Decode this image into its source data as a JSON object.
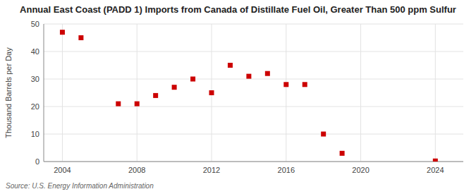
{
  "chart_data": {
    "type": "scatter",
    "title": "Annual East Coast (PADD 1) Imports from Canada of Distillate Fuel Oil, Greater Than 500 ppm Sulfur",
    "y_label": "Thousand Barrels per Day",
    "source": "Source: U.S. Energy Information Administration",
    "x": [
      2004,
      2005,
      2007,
      2008,
      2009,
      2010,
      2011,
      2012,
      2013,
      2014,
      2015,
      2016,
      2017,
      2018,
      2019,
      2024
    ],
    "values": [
      47.0,
      45.0,
      21.0,
      21.0,
      24.0,
      27.0,
      30.0,
      25.0,
      35.0,
      31.0,
      32.0,
      28.0,
      28.0,
      10.0,
      3.0,
      0.2
    ],
    "color": "#cc0000",
    "marker": "square",
    "xlim": [
      2003.0,
      2025.5
    ],
    "ylim": [
      0,
      50
    ],
    "xticks": [
      2004,
      2008,
      2012,
      2016,
      2020,
      2024
    ],
    "yticks": [
      0,
      10,
      20,
      30,
      40,
      50
    ],
    "grid": true
  }
}
